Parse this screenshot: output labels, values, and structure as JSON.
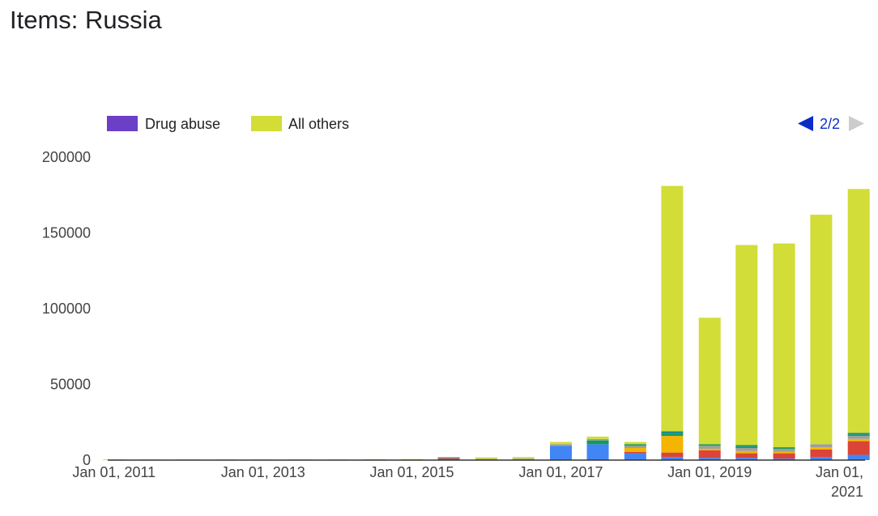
{
  "page": {
    "title": "Items: Russia"
  },
  "chart_data": {
    "type": "bar",
    "stacked": true,
    "title": "",
    "xlabel": "",
    "ylabel": "",
    "ylim": [
      0,
      200000
    ],
    "y_ticks": [
      0,
      50000,
      100000,
      150000,
      200000
    ],
    "grid": false,
    "legend": {
      "placement": "top-left",
      "page": "2/2",
      "entries": [
        {
          "name": "Drug abuse",
          "color": "#6b3fc6"
        },
        {
          "name": "All others",
          "color": "#d2dd37"
        }
      ]
    },
    "x_ticks": [
      {
        "date": "2011-01-01",
        "label": "Jan 01, 2011"
      },
      {
        "date": "2013-01-01",
        "label": "Jan 01, 2013"
      },
      {
        "date": "2015-01-01",
        "label": "Jan 01, 2015"
      },
      {
        "date": "2017-01-01",
        "label": "Jan 01, 2017"
      },
      {
        "date": "2019-01-01",
        "label": "Jan 01, 2019"
      },
      {
        "date": "2021-01-01",
        "label": "Jan 01, 2021"
      }
    ],
    "x_range": [
      "2010-12-01",
      "2021-02-01"
    ],
    "segment_colors": {
      "blue": "#4285f4",
      "red": "#db4437",
      "orange": "#f4b400",
      "green": "#0f9d58",
      "teal": "#1b8a8f",
      "gray": "#9e9e9e",
      "brown": "#a0665d",
      "others": "#d2dd37"
    },
    "bars": [
      {
        "date": "2011-01-01",
        "segments": [
          {
            "color": "others",
            "value": 500
          }
        ]
      },
      {
        "date": "2011-07-01",
        "segments": [
          {
            "color": "others",
            "value": 400
          }
        ]
      },
      {
        "date": "2012-01-01",
        "segments": [
          {
            "color": "others",
            "value": 450
          }
        ]
      },
      {
        "date": "2012-07-01",
        "segments": [
          {
            "color": "others",
            "value": 400
          }
        ]
      },
      {
        "date": "2013-01-01",
        "segments": [
          {
            "color": "others",
            "value": 400
          }
        ]
      },
      {
        "date": "2013-07-01",
        "segments": [
          {
            "color": "others",
            "value": 450
          }
        ]
      },
      {
        "date": "2014-01-01",
        "segments": [
          {
            "color": "others",
            "value": 400
          }
        ]
      },
      {
        "date": "2014-07-01",
        "segments": [
          {
            "color": "others",
            "value": 600
          }
        ]
      },
      {
        "date": "2015-01-01",
        "segments": [
          {
            "color": "others",
            "value": 700
          }
        ]
      },
      {
        "date": "2015-07-01",
        "segments": [
          {
            "color": "brown",
            "value": 1600
          },
          {
            "color": "gray",
            "value": 400
          }
        ]
      },
      {
        "date": "2016-01-01",
        "segments": [
          {
            "color": "gray",
            "value": 800
          },
          {
            "color": "others",
            "value": 1000
          }
        ]
      },
      {
        "date": "2016-07-01",
        "segments": [
          {
            "color": "gray",
            "value": 1000
          },
          {
            "color": "others",
            "value": 1000
          }
        ]
      },
      {
        "date": "2017-01-01",
        "segments": [
          {
            "color": "blue",
            "value": 9500
          },
          {
            "color": "gray",
            "value": 1000
          },
          {
            "color": "others",
            "value": 1500
          }
        ]
      },
      {
        "date": "2017-07-01",
        "segments": [
          {
            "color": "blue",
            "value": 10500
          },
          {
            "color": "green",
            "value": 2500
          },
          {
            "color": "gray",
            "value": 1000
          },
          {
            "color": "others",
            "value": 1500
          }
        ]
      },
      {
        "date": "2018-01-01",
        "segments": [
          {
            "color": "blue",
            "value": 4500
          },
          {
            "color": "red",
            "value": 1000
          },
          {
            "color": "orange",
            "value": 2500
          },
          {
            "color": "gray",
            "value": 1500
          },
          {
            "color": "green",
            "value": 1000
          },
          {
            "color": "others",
            "value": 1500
          }
        ]
      },
      {
        "date": "2018-07-01",
        "segments": [
          {
            "color": "blue",
            "value": 2000
          },
          {
            "color": "red",
            "value": 3000
          },
          {
            "color": "orange",
            "value": 11000
          },
          {
            "color": "green",
            "value": 1500
          },
          {
            "color": "teal",
            "value": 1500
          },
          {
            "color": "others",
            "value": 162000
          }
        ]
      },
      {
        "date": "2019-01-01",
        "segments": [
          {
            "color": "blue",
            "value": 1500
          },
          {
            "color": "red",
            "value": 5000
          },
          {
            "color": "orange",
            "value": 1000
          },
          {
            "color": "gray",
            "value": 2000
          },
          {
            "color": "green",
            "value": 1000
          },
          {
            "color": "others",
            "value": 83500
          }
        ]
      },
      {
        "date": "2019-07-01",
        "segments": [
          {
            "color": "blue",
            "value": 1500
          },
          {
            "color": "red",
            "value": 3000
          },
          {
            "color": "orange",
            "value": 1500
          },
          {
            "color": "gray",
            "value": 2000
          },
          {
            "color": "green",
            "value": 1000
          },
          {
            "color": "teal",
            "value": 1000
          },
          {
            "color": "others",
            "value": 132000
          }
        ]
      },
      {
        "date": "2020-01-01",
        "segments": [
          {
            "color": "blue",
            "value": 1000
          },
          {
            "color": "red",
            "value": 3500
          },
          {
            "color": "orange",
            "value": 1000
          },
          {
            "color": "gray",
            "value": 2000
          },
          {
            "color": "green",
            "value": 1000
          },
          {
            "color": "others",
            "value": 134500
          }
        ]
      },
      {
        "date": "2020-07-01",
        "segments": [
          {
            "color": "blue",
            "value": 2000
          },
          {
            "color": "red",
            "value": 5000
          },
          {
            "color": "orange",
            "value": 1500
          },
          {
            "color": "gray",
            "value": 2000
          },
          {
            "color": "others",
            "value": 151500
          }
        ]
      },
      {
        "date": "2021-01-01",
        "segments": [
          {
            "color": "blue",
            "value": 3500
          },
          {
            "color": "red",
            "value": 9000
          },
          {
            "color": "orange",
            "value": 1500
          },
          {
            "color": "gray",
            "value": 2000
          },
          {
            "color": "green",
            "value": 1000
          },
          {
            "color": "teal",
            "value": 1000
          },
          {
            "color": "others",
            "value": 161000
          }
        ]
      }
    ]
  }
}
